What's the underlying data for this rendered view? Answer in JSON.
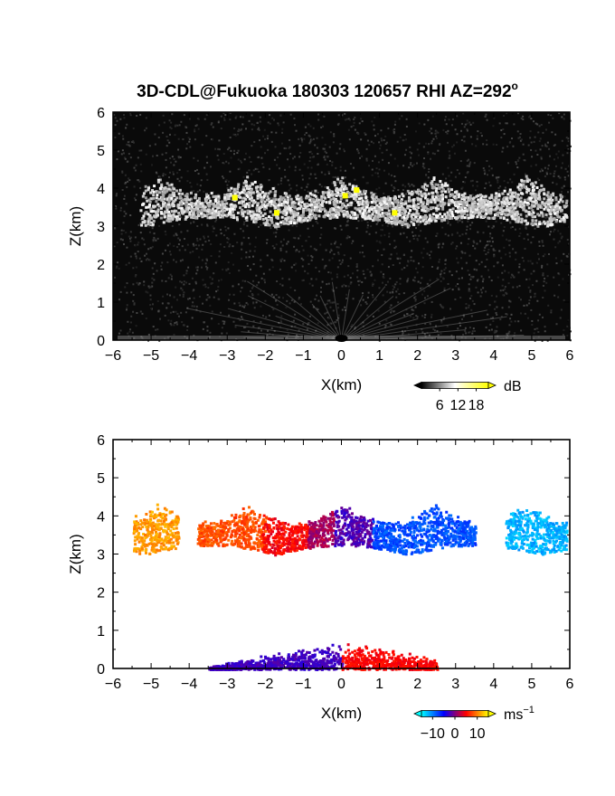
{
  "title": "3D-CDL@Fukuoka 180303 120657 RHI AZ=292",
  "title_sup": "o",
  "chart_data": [
    {
      "type": "heatmap",
      "panel": "top",
      "field": "signal intensity",
      "xlabel": "X(km)",
      "ylabel": "Z(km)",
      "xlim": [
        -6,
        6
      ],
      "ylim": [
        0,
        6
      ],
      "xticks": [
        "−6",
        "−5",
        "−4",
        "−3",
        "−2",
        "−1",
        "0",
        "1",
        "2",
        "3",
        "4",
        "5",
        "6"
      ],
      "yticks": [
        "0",
        "1",
        "2",
        "3",
        "4",
        "5",
        "6"
      ],
      "colorbar": {
        "unit": "dB",
        "ticks": [
          "6",
          "12",
          "18"
        ],
        "range": [
          0,
          22
        ],
        "colors": [
          "#000000",
          "#ffffff",
          "#ffff00"
        ]
      },
      "background": "#0a0a0a",
      "cloud_layer": {
        "x_range": [
          -5.3,
          5.9
        ],
        "z_base": 3.0,
        "z_top": 4.4
      },
      "strong_echo_points": [
        {
          "x": -2.8,
          "z": 3.75
        },
        {
          "x": -1.7,
          "z": 3.35
        },
        {
          "x": 0.1,
          "z": 3.8
        },
        {
          "x": 0.4,
          "z": 3.95
        },
        {
          "x": 1.4,
          "z": 3.35
        }
      ]
    },
    {
      "type": "heatmap",
      "panel": "bottom",
      "field": "Doppler velocity",
      "xlabel": "X(km)",
      "ylabel": "Z(km)",
      "xlim": [
        -6,
        6
      ],
      "ylim": [
        0,
        6
      ],
      "xticks": [
        "−6",
        "−5",
        "−4",
        "−3",
        "−2",
        "−1",
        "0",
        "1",
        "2",
        "3",
        "4",
        "5",
        "6"
      ],
      "yticks": [
        "0",
        "1",
        "2",
        "3",
        "4",
        "5",
        "6"
      ],
      "colorbar": {
        "unit": "ms",
        "unit_sup": "−1",
        "ticks": [
          "−10",
          "0",
          "10"
        ],
        "range": [
          -15,
          15
        ],
        "colors": [
          "#00ffff",
          "#0000ff",
          "#ff0000",
          "#ffff00"
        ]
      },
      "cloud_segments": [
        {
          "x0": -5.5,
          "x1": -4.3,
          "v": 11
        },
        {
          "x0": -3.8,
          "x1": -2.0,
          "v": 8
        },
        {
          "x0": -2.1,
          "x1": -0.9,
          "v": 5
        },
        {
          "x0": -0.9,
          "x1": -0.2,
          "v": 1.5
        },
        {
          "x0": -0.2,
          "x1": 0.8,
          "v": -2
        },
        {
          "x0": 0.8,
          "x1": 3.5,
          "v": -8
        },
        {
          "x0": 4.3,
          "x1": 5.9,
          "v": -12
        }
      ],
      "near_field": [
        {
          "x0": -3.5,
          "x1": 0.0,
          "v": -2.5
        },
        {
          "x0": 0.0,
          "x1": 2.5,
          "v": 5
        }
      ]
    }
  ]
}
